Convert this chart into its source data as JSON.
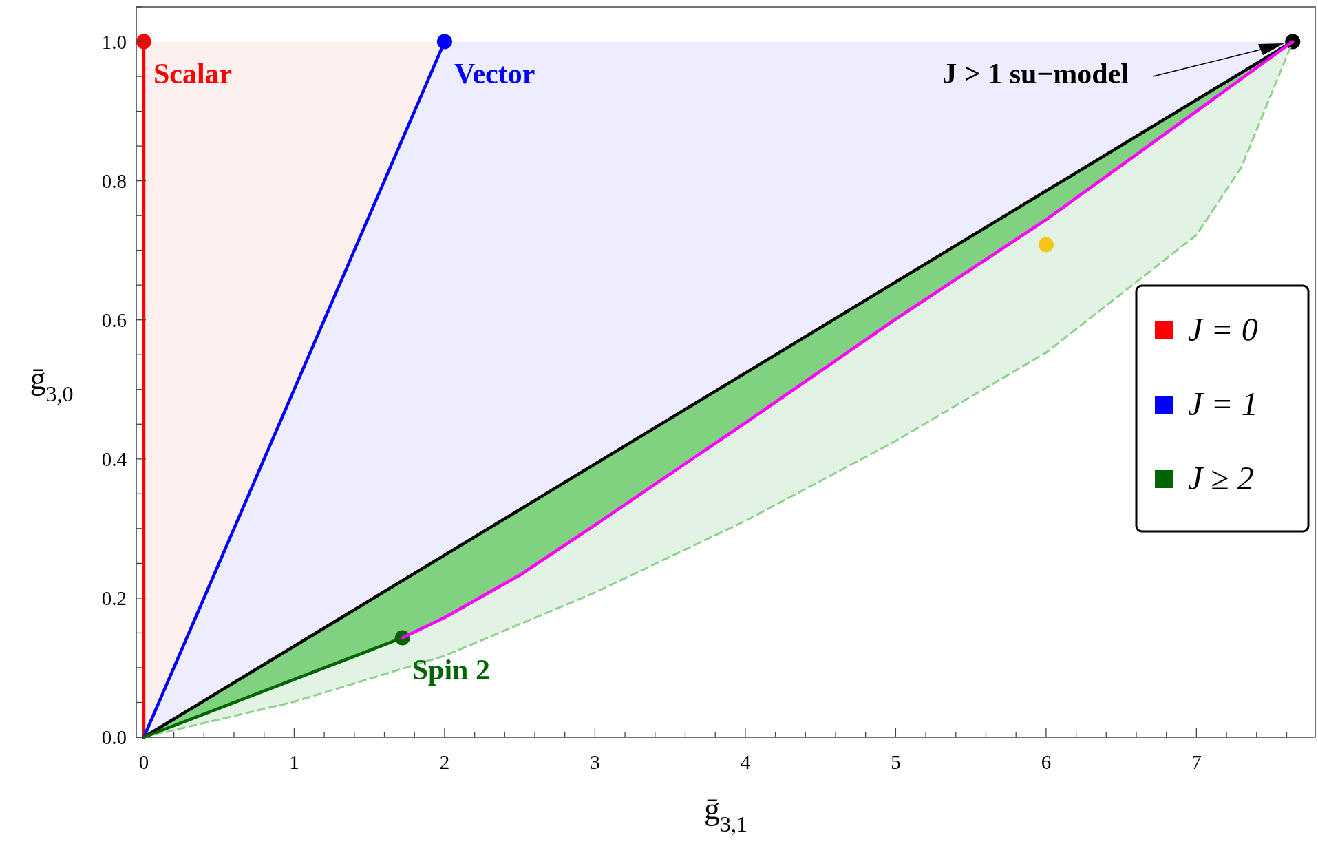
{
  "chart_data": {
    "type": "line",
    "xlabel": "ḡ$_{3,1}$",
    "ylabel": "ḡ$_{3,0}$",
    "xlim": [
      -0.05,
      7.79
    ],
    "ylim": [
      0,
      1.05
    ],
    "xticks": [
      0,
      {
        "value": 0.2,
        "label": null
      },
      {
        "value": 0.4,
        "label": null
      },
      {
        "value": 0.6,
        "label": null
      },
      {
        "value": 0.8,
        "label": null
      },
      1,
      {
        "value": 1.2,
        "label": null
      },
      {
        "value": 1.4,
        "label": null
      },
      {
        "value": 1.6,
        "label": null
      },
      {
        "value": 1.8,
        "label": null
      },
      2,
      {
        "value": 2.2,
        "label": null
      },
      {
        "value": 2.4,
        "label": null
      },
      {
        "value": 2.6,
        "label": null
      },
      {
        "value": 2.8,
        "label": null
      },
      3,
      {
        "value": 3.2,
        "label": null
      },
      {
        "value": 3.4,
        "label": null
      },
      {
        "value": 3.6,
        "label": null
      },
      {
        "value": 3.8,
        "label": null
      },
      4,
      {
        "value": 4.2,
        "label": null
      },
      {
        "value": 4.4,
        "label": null
      },
      {
        "value": 4.6,
        "label": null
      },
      {
        "value": 4.8,
        "label": null
      },
      5,
      {
        "value": 5.2,
        "label": null
      },
      {
        "value": 5.4,
        "label": null
      },
      {
        "value": 5.6,
        "label": null
      },
      {
        "value": 5.8,
        "label": null
      },
      6,
      {
        "value": 6.2,
        "label": null
      },
      {
        "value": 6.4,
        "label": null
      },
      {
        "value": 6.6,
        "label": null
      },
      {
        "value": 6.8,
        "label": null
      },
      7,
      {
        "value": 7.2,
        "label": null
      },
      {
        "value": 7.4,
        "label": null
      },
      {
        "value": 7.6,
        "label": null
      }
    ],
    "yticks": [
      {
        "value": 0,
        "label": "0.0"
      },
      {
        "value": 0.05,
        "label": null
      },
      {
        "value": 0.1,
        "label": null
      },
      {
        "value": 0.15,
        "label": null
      },
      {
        "value": 0.2,
        "label": "0.2"
      },
      {
        "value": 0.25,
        "label": null
      },
      {
        "value": 0.3,
        "label": null
      },
      {
        "value": 0.35,
        "label": null
      },
      {
        "value": 0.4,
        "label": "0.4"
      },
      {
        "value": 0.45,
        "label": null
      },
      {
        "value": 0.5,
        "label": null
      },
      {
        "value": 0.55,
        "label": null
      },
      {
        "value": 0.6,
        "label": "0.6"
      },
      {
        "value": 0.65,
        "label": null
      },
      {
        "value": 0.7,
        "label": null
      },
      {
        "value": 0.75,
        "label": null
      },
      {
        "value": 0.8,
        "label": "0.8"
      },
      {
        "value": 0.85,
        "label": null
      },
      {
        "value": 0.9,
        "label": null
      },
      {
        "value": 0.95,
        "label": null
      },
      {
        "value": 1,
        "label": "1.0"
      },
      {
        "value": 1.05,
        "label": null
      }
    ],
    "grid": false,
    "legend": "right",
    "series": [
      {
        "color": "#90d090",
        "line_style": "dashed",
        "x": [
          0,
          1,
          2,
          3,
          4,
          5,
          6,
          7,
          7.3,
          7.64
        ],
        "values": [
          0,
          0.051,
          0.117,
          0.208,
          0.311,
          0.426,
          0.553,
          0.722,
          0.82,
          1
        ]
      },
      {
        "name": "J = 0",
        "color": "#ff0000",
        "x": [
          0,
          0
        ],
        "values": [
          0,
          1
        ]
      },
      {
        "name": "J = 1",
        "color": "#0000ff",
        "x": [
          0,
          2
        ],
        "values": [
          0,
          1
        ]
      },
      {
        "color": "#000000",
        "x": [
          0,
          7.64
        ],
        "values": [
          0,
          1
        ]
      },
      {
        "name": "J ≥ 2",
        "color": "#006400",
        "x": [
          0,
          1.72
        ],
        "values": [
          0,
          0.143
        ]
      },
      {
        "color": "#ff00ff",
        "x": [
          1.72,
          2,
          2.5,
          3,
          4,
          5,
          6,
          7,
          7.64
        ],
        "values": [
          0.143,
          0.172,
          0.233,
          0.305,
          0.452,
          0.601,
          0.744,
          0.9,
          1
        ]
      },
      {
        "type": "scatter",
        "marker": "circle",
        "x": [
          0,
          2,
          7.64,
          1.72,
          6
        ],
        "values": [
          1,
          1,
          1,
          0.143,
          0.708
        ],
        "colors": [
          "#ff0000",
          "#0000ff",
          "#000000",
          "#006400",
          "#f5c518"
        ]
      }
    ],
    "annotations": [
      {
        "text": "Scalar",
        "x": 0,
        "y": 1
      },
      {
        "text": "Vector",
        "x": 2,
        "y": 1
      },
      "J > 1 su−model",
      {
        "text": "Spin 2",
        "x": 1.72,
        "y": 0.143
      }
    ]
  }
}
